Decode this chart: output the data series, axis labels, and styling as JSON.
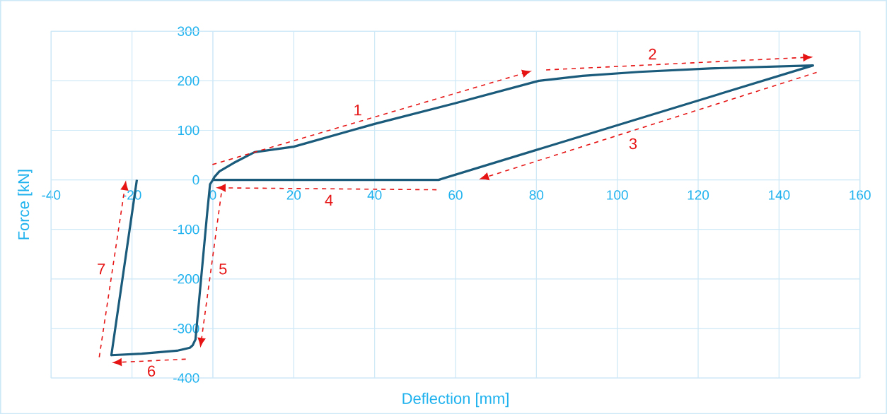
{
  "chart_data": {
    "type": "line",
    "xlabel": "Deflection [mm]",
    "ylabel": "Force [kN]",
    "xlim": [
      -40,
      160
    ],
    "ylim": [
      -400,
      300
    ],
    "xticks": [
      -40,
      -20,
      0,
      20,
      40,
      60,
      80,
      100,
      120,
      140,
      160
    ],
    "yticks": [
      -400,
      -300,
      -200,
      -100,
      0,
      100,
      200,
      300
    ],
    "grid": true,
    "line_style": "solid",
    "series": [
      {
        "color": "#1a5a7a",
        "x": [
          0,
          0.4,
          1.6,
          5.1,
          10.3,
          20,
          40,
          60,
          80.6,
          91.4,
          105.4,
          122.9,
          148.4,
          55.8,
          0,
          -0.7,
          -1.4,
          -4.3,
          -5,
          -5.7,
          -8.9,
          -17.6,
          -25.1,
          -18.8
        ],
        "values": [
          0,
          6,
          17,
          34,
          56,
          67,
          113,
          155,
          200,
          210,
          218,
          225,
          231,
          0,
          0,
          -9,
          -66,
          -322,
          -334,
          -339,
          -345,
          -351,
          -354,
          0
        ]
      }
    ],
    "annotations": [
      "1",
      "2",
      "3",
      "4",
      "5",
      "6",
      "7"
    ]
  }
}
